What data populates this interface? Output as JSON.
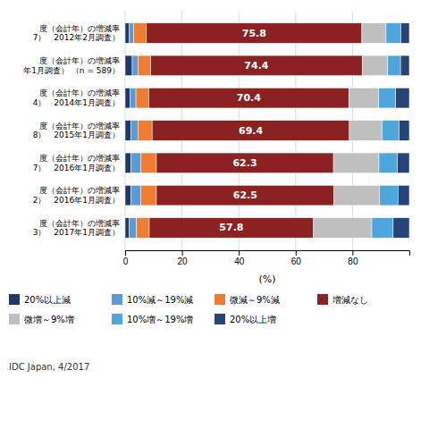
{
  "chart_data": {
    "type": "bar",
    "orientation": "horizontal",
    "stacked": true,
    "categories": [
      "度（会計年）の増減率\n7）　2012年2月調査）",
      "度（会計年）の増減率\n年1月調査） （n = 589）",
      "度（会計年）の増減率\n4）　2014年1月調査）",
      "度（会計年）の増減率\n8）　2015年1月調査）",
      "度（会計年）の増減率\n7）　2016年1月調査）",
      "度（会計年）の増減率\n2）　2016年1月調査）",
      "度（会計年）の増減率\n3）　2017年1月調査）"
    ],
    "series": [
      {
        "name": "20%以上減",
        "color": "#1F3864",
        "values": [
          1.5,
          2.5,
          1.8,
          2.0,
          2.0,
          2.0,
          1.5
        ]
      },
      {
        "name": "10%減～19%減",
        "color": "#5B9BD5",
        "values": [
          1.5,
          2.0,
          2.0,
          2.5,
          3.5,
          3.5,
          2.5
        ]
      },
      {
        "name": "微減～9%減",
        "color": "#ED7D31",
        "values": [
          4.5,
          4.5,
          4.5,
          5.0,
          5.5,
          5.5,
          4.5
        ]
      },
      {
        "name": "増減なし",
        "color": "#8B2222",
        "values": [
          75.8,
          74.4,
          70.4,
          69.4,
          62.3,
          62.5,
          57.8
        ],
        "data_labels": true
      },
      {
        "name": "微増～9%増",
        "color": "#BFBFBF",
        "values": [
          8.5,
          9.0,
          10.5,
          11.5,
          16.0,
          16.0,
          20.5
        ]
      },
      {
        "name": "10%増～19%増",
        "color": "#4EA6DC",
        "values": [
          5.2,
          4.5,
          6.0,
          6.0,
          6.5,
          6.5,
          7.5
        ]
      },
      {
        "name": "20%以上増",
        "color": "#264478",
        "values": [
          3.0,
          3.1,
          4.8,
          3.6,
          4.2,
          4.0,
          5.7
        ]
      }
    ],
    "xlim": [
      0,
      100
    ],
    "xticks": [
      0,
      20,
      40,
      60,
      80
    ],
    "xlabel": "(%)",
    "grid": true,
    "legend": "bottom",
    "source": "IDC Japan, 4/2017"
  }
}
